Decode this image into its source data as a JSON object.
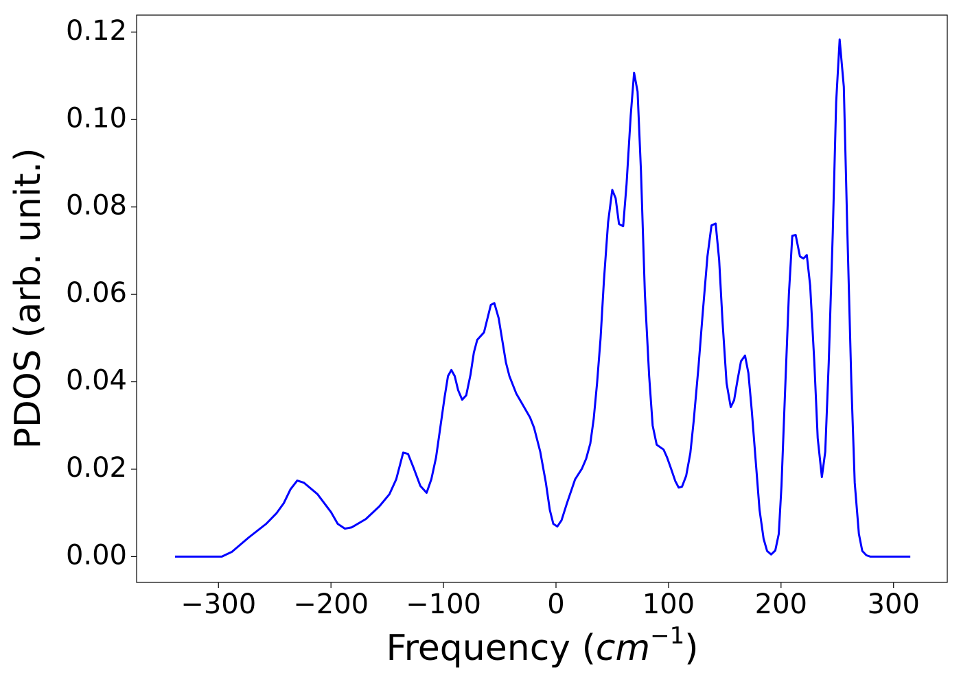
{
  "chart_data": {
    "type": "line",
    "xlabel": [
      "Frequency (",
      "cm",
      "−1",
      ")"
    ],
    "ylabel": "PDOS (arb. unit.)",
    "x": [
      -338.6,
      -297,
      -288,
      -273,
      -257.6,
      -248.5,
      -242,
      -236,
      -230,
      -224,
      -212,
      -200,
      -194,
      -187.6,
      -181.5,
      -169,
      -157,
      -148,
      -142,
      -135.8,
      -131.5,
      -126.7,
      -120.6,
      -115,
      -110.8,
      -106.6,
      -99,
      -96,
      -93,
      -90,
      -87,
      -83.4,
      -79.8,
      -76,
      -73,
      -70,
      -64,
      -57.9,
      -54.8,
      -51,
      -44.5,
      -41.4,
      -35.3,
      -29,
      -23,
      -19.5,
      -14,
      -9,
      -5.5,
      -2.4,
      1.2,
      4.9,
      9.7,
      17,
      23,
      26.8,
      30.5,
      33.5,
      36.5,
      39.6,
      42.6,
      46.3,
      50,
      53,
      56,
      59.7,
      62.7,
      66.4,
      69.4,
      72.5,
      75.5,
      79,
      82.8,
      85.9,
      89.5,
      95.6,
      98.7,
      102.3,
      106,
      109,
      112,
      115.7,
      119.4,
      122.4,
      126.7,
      130.3,
      134.6,
      138.2,
      141.9,
      145,
      148,
      151.6,
      155.3,
      158.3,
      161.4,
      164.4,
      168,
      171,
      174,
      177.8,
      180.9,
      184.5,
      187.6,
      191.2,
      194.9,
      198,
      200.4,
      203.4,
      207,
      210,
      213,
      216.8,
      219.9,
      222.9,
      225.9,
      229.6,
      232.6,
      236.3,
      239.3,
      242.4,
      246,
      249,
      252.1,
      255.8,
      258.8,
      262.5,
      265.5,
      269.2,
      272.2,
      275.9,
      279.5,
      314.9
    ],
    "series": [
      {
        "name": "PDOS",
        "color": "#0000ff",
        "values": [
          0,
          0,
          0.0011,
          0.0044,
          0.0075,
          0.0099,
          0.0122,
          0.0154,
          0.0174,
          0.0169,
          0.0143,
          0.0102,
          0.0075,
          0.0064,
          0.0067,
          0.0086,
          0.0115,
          0.0143,
          0.0177,
          0.0238,
          0.0235,
          0.0204,
          0.0162,
          0.0146,
          0.0177,
          0.0227,
          0.0365,
          0.0413,
          0.0427,
          0.0413,
          0.0381,
          0.0359,
          0.0369,
          0.0416,
          0.0467,
          0.0496,
          0.0513,
          0.0576,
          0.058,
          0.0546,
          0.0444,
          0.0413,
          0.0373,
          0.0345,
          0.0318,
          0.0295,
          0.024,
          0.0169,
          0.0107,
          0.0075,
          0.0069,
          0.0083,
          0.0122,
          0.0177,
          0.0201,
          0.0224,
          0.0259,
          0.0315,
          0.0397,
          0.0499,
          0.0632,
          0.0765,
          0.0839,
          0.082,
          0.0761,
          0.0756,
          0.0852,
          0.1009,
          0.1107,
          0.1064,
          0.0883,
          0.0601,
          0.0413,
          0.03,
          0.0256,
          0.0245,
          0.0227,
          0.0201,
          0.0173,
          0.0158,
          0.016,
          0.0185,
          0.0237,
          0.0311,
          0.0436,
          0.0554,
          0.0687,
          0.0758,
          0.0762,
          0.0679,
          0.0538,
          0.0397,
          0.0342,
          0.0358,
          0.0405,
          0.0447,
          0.046,
          0.042,
          0.0334,
          0.0209,
          0.0107,
          0.0041,
          0.0013,
          0.0005,
          0.0014,
          0.0052,
          0.0162,
          0.0365,
          0.0601,
          0.0734,
          0.0736,
          0.0687,
          0.0682,
          0.069,
          0.062,
          0.0444,
          0.0271,
          0.0182,
          0.024,
          0.0444,
          0.0742,
          0.104,
          0.1183,
          0.1075,
          0.0758,
          0.0397,
          0.0169,
          0.0052,
          0.0013,
          0.0003,
          0,
          0
        ]
      }
    ],
    "xlim": [
      -372.75,
      347.75
    ],
    "xticks": [
      {
        "value": -300,
        "label": "−300"
      },
      {
        "value": -200,
        "label": "−200"
      },
      {
        "value": -100,
        "label": "−100"
      },
      0,
      100,
      200,
      300
    ],
    "ylim": [
      -0.0059,
      0.1239
    ],
    "yticks": [
      {
        "value": 0,
        "label": "0.00"
      },
      {
        "value": 0.02,
        "label": "0.02"
      },
      {
        "value": 0.04,
        "label": "0.04"
      },
      {
        "value": 0.06,
        "label": "0.06"
      },
      {
        "value": 0.08,
        "label": "0.08"
      },
      {
        "value": 0.1,
        "label": "0.10"
      },
      {
        "value": 0.12,
        "label": "0.12"
      }
    ]
  }
}
